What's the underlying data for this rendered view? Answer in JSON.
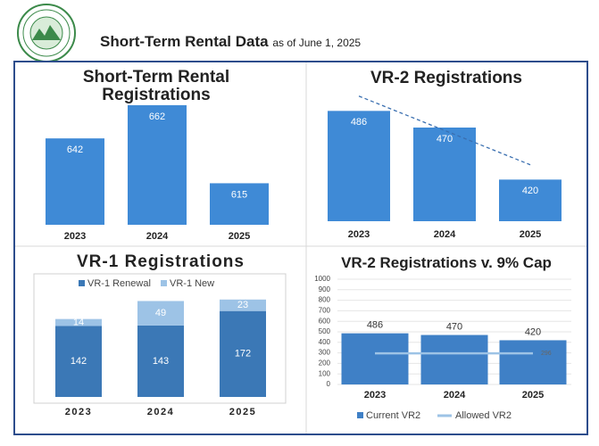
{
  "header": {
    "title": "Short-Term Rental Data",
    "subtitle": "as of June 1, 2025"
  },
  "chart_data": [
    {
      "type": "bar",
      "title": "Short-Term Rental Registrations",
      "categories": [
        "2023",
        "2024",
        "2025"
      ],
      "values": [
        642,
        662,
        615
      ],
      "color": "#3f8ad6",
      "ylim": [
        590,
        670
      ]
    },
    {
      "type": "bar",
      "title": "VR-2 Registrations",
      "categories": [
        "2023",
        "2024",
        "2025"
      ],
      "values": [
        486,
        470,
        420
      ],
      "color": "#3f8ad6",
      "ylim": [
        380,
        500
      ],
      "trendline": true
    },
    {
      "type": "stacked_bar",
      "title": "VR-1 Registrations",
      "categories": [
        "2023",
        "2024",
        "2025"
      ],
      "series": [
        {
          "name": "VR-1 Renewal",
          "color": "#3b78b6",
          "values": [
            142,
            143,
            172
          ]
        },
        {
          "name": "VR-1 New",
          "color": "#9dc3e6",
          "values": [
            14,
            49,
            23
          ]
        }
      ],
      "ylim": [
        0,
        200
      ]
    },
    {
      "type": "bar_line",
      "title": "VR-2 Registrations v. 9% Cap",
      "categories": [
        "2023",
        "2024",
        "2025"
      ],
      "series": [
        {
          "name": "Current VR2",
          "color": "#3f80c6",
          "values": [
            486,
            470,
            420
          ]
        },
        {
          "name": "Allowed VR2",
          "color": "#9dc3e6",
          "values": [
            296,
            296,
            296
          ]
        }
      ],
      "ylim": [
        0,
        1000
      ],
      "yticks": [
        0,
        100,
        200,
        300,
        400,
        500,
        600,
        700,
        800,
        900,
        1000
      ],
      "grid": true
    }
  ]
}
